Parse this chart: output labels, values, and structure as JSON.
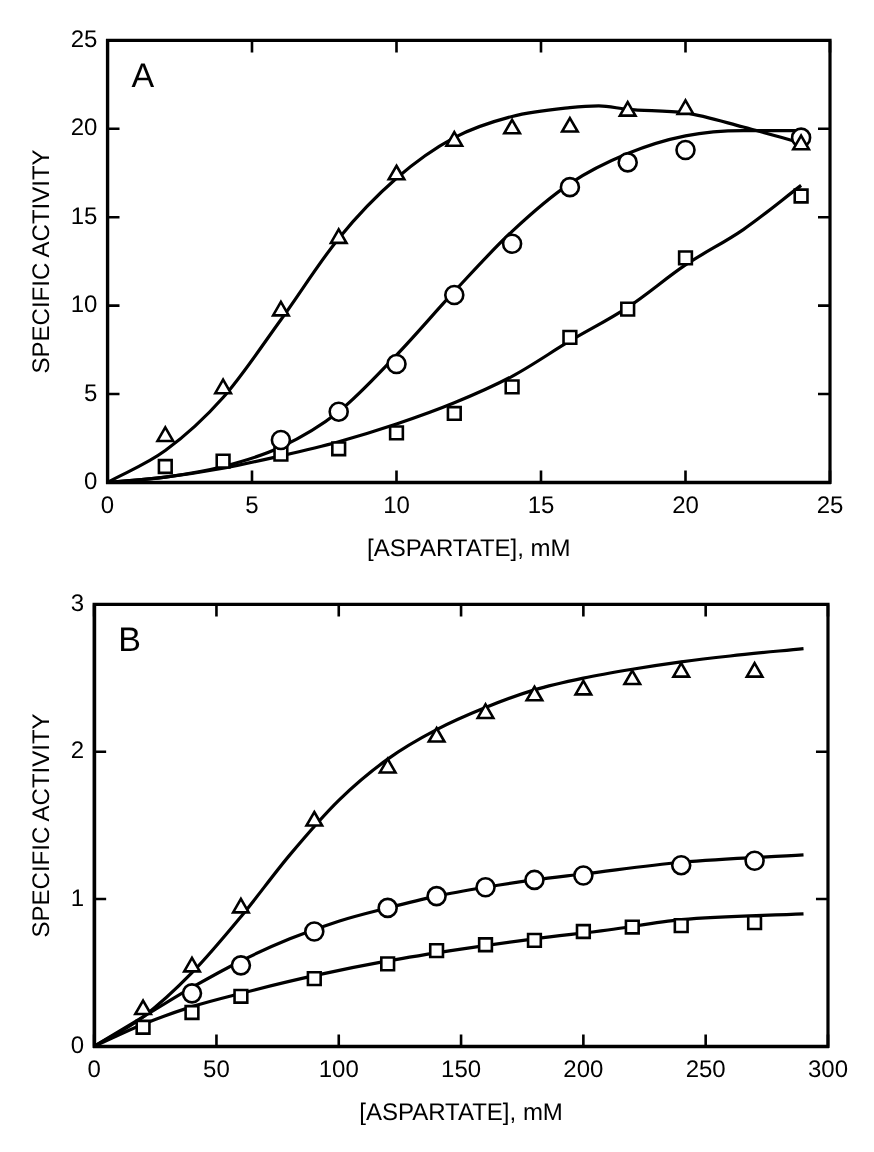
{
  "chart_data": [
    {
      "type": "scatter",
      "annotations": [
        "A"
      ],
      "xlabel": "[ASPARTATE], mM",
      "ylabel": "SPECIFIC ACTIVITY",
      "xlim": [
        0,
        25
      ],
      "xticks": [
        0,
        5,
        10,
        15,
        20,
        25
      ],
      "ylim": [
        0,
        25
      ],
      "yticks": [
        0,
        5,
        10,
        15,
        20,
        25
      ],
      "grid": false,
      "legend": false,
      "series": [
        {
          "marker": "triangle",
          "color": "#000000",
          "x": [
            2,
            4,
            6,
            8,
            10,
            12,
            14,
            16,
            18,
            20,
            24
          ],
          "values": [
            2.6,
            5.3,
            9.7,
            13.8,
            17.4,
            19.3,
            20.0,
            20.1,
            21.0,
            21.1,
            19.1
          ]
        },
        {
          "marker": "circle",
          "color": "#000000",
          "x": [
            6,
            8,
            10,
            12,
            14,
            16,
            18,
            20,
            24
          ],
          "values": [
            2.4,
            4.0,
            6.7,
            10.6,
            13.5,
            16.7,
            18.1,
            18.8,
            19.5
          ]
        },
        {
          "marker": "square",
          "color": "#000000",
          "x": [
            2,
            4,
            6,
            8,
            10,
            12,
            14,
            16,
            18,
            20,
            24
          ],
          "values": [
            0.9,
            1.2,
            1.6,
            1.9,
            2.8,
            3.9,
            5.4,
            8.2,
            9.8,
            12.7,
            16.2
          ]
        },
        {
          "type": "line",
          "marker": "none",
          "color": "#000000",
          "x": [
            0,
            2,
            4,
            6,
            8,
            10,
            12,
            14,
            16,
            17,
            18,
            20,
            22,
            24
          ],
          "values": [
            0,
            1.8,
            4.8,
            9.2,
            13.8,
            17.2,
            19.5,
            20.7,
            21.2,
            21.3,
            21.1,
            20.9,
            20.1,
            19.2
          ]
        },
        {
          "type": "line",
          "marker": "none",
          "color": "#000000",
          "x": [
            0,
            2,
            4,
            6,
            8,
            10,
            12,
            14,
            16,
            18,
            20,
            22,
            24
          ],
          "values": [
            0,
            0.3,
            0.9,
            2.0,
            4.0,
            7.2,
            10.8,
            14.2,
            16.9,
            18.6,
            19.6,
            19.9,
            19.9
          ]
        },
        {
          "type": "line",
          "marker": "none",
          "color": "#000000",
          "x": [
            0,
            2,
            4,
            6,
            8,
            10,
            12,
            14,
            16,
            18,
            20,
            22,
            24
          ],
          "values": [
            0,
            0.3,
            0.8,
            1.5,
            2.3,
            3.3,
            4.5,
            6.0,
            8.0,
            9.9,
            12.3,
            14.3,
            16.8
          ]
        }
      ]
    },
    {
      "type": "scatter",
      "annotations": [
        "B"
      ],
      "xlabel": "[ASPARTATE], mM",
      "ylabel": "SPECIFIC ACTIVITY",
      "xlim": [
        0,
        300
      ],
      "xticks": [
        0,
        50,
        100,
        150,
        200,
        250,
        300
      ],
      "ylim": [
        0,
        3
      ],
      "yticks": [
        0,
        1,
        2,
        3
      ],
      "grid": false,
      "legend": false,
      "series": [
        {
          "marker": "triangle",
          "color": "#000000",
          "x": [
            20,
            40,
            60,
            90,
            120,
            140,
            160,
            180,
            200,
            220,
            240,
            270
          ],
          "values": [
            0.25,
            0.54,
            0.94,
            1.53,
            1.89,
            2.1,
            2.26,
            2.38,
            2.42,
            2.49,
            2.54,
            2.54
          ]
        },
        {
          "marker": "circle",
          "color": "#000000",
          "x": [
            40,
            60,
            90,
            120,
            140,
            160,
            180,
            200,
            240,
            270
          ],
          "values": [
            0.36,
            0.55,
            0.78,
            0.94,
            1.02,
            1.08,
            1.13,
            1.16,
            1.23,
            1.26
          ]
        },
        {
          "marker": "square",
          "color": "#000000",
          "x": [
            20,
            40,
            60,
            90,
            120,
            140,
            160,
            180,
            200,
            220,
            240,
            270
          ],
          "values": [
            0.13,
            0.23,
            0.34,
            0.46,
            0.56,
            0.65,
            0.69,
            0.72,
            0.78,
            0.81,
            0.82,
            0.84
          ]
        },
        {
          "type": "line",
          "marker": "none",
          "color": "#000000",
          "x": [
            0,
            20,
            40,
            60,
            80,
            100,
            120,
            140,
            160,
            180,
            200,
            220,
            240,
            260,
            290
          ],
          "values": [
            0,
            0.2,
            0.5,
            0.88,
            1.3,
            1.67,
            1.95,
            2.15,
            2.3,
            2.42,
            2.5,
            2.56,
            2.61,
            2.65,
            2.7
          ]
        },
        {
          "type": "line",
          "marker": "none",
          "color": "#000000",
          "x": [
            0,
            20,
            40,
            60,
            80,
            100,
            120,
            140,
            160,
            180,
            200,
            240,
            290
          ],
          "values": [
            0,
            0.2,
            0.4,
            0.58,
            0.73,
            0.85,
            0.94,
            1.02,
            1.08,
            1.13,
            1.17,
            1.25,
            1.3
          ]
        },
        {
          "type": "line",
          "marker": "none",
          "color": "#000000",
          "x": [
            0,
            20,
            40,
            60,
            90,
            120,
            150,
            180,
            210,
            240,
            290
          ],
          "values": [
            0,
            0.15,
            0.27,
            0.36,
            0.48,
            0.58,
            0.66,
            0.73,
            0.79,
            0.86,
            0.9
          ]
        }
      ]
    }
  ]
}
